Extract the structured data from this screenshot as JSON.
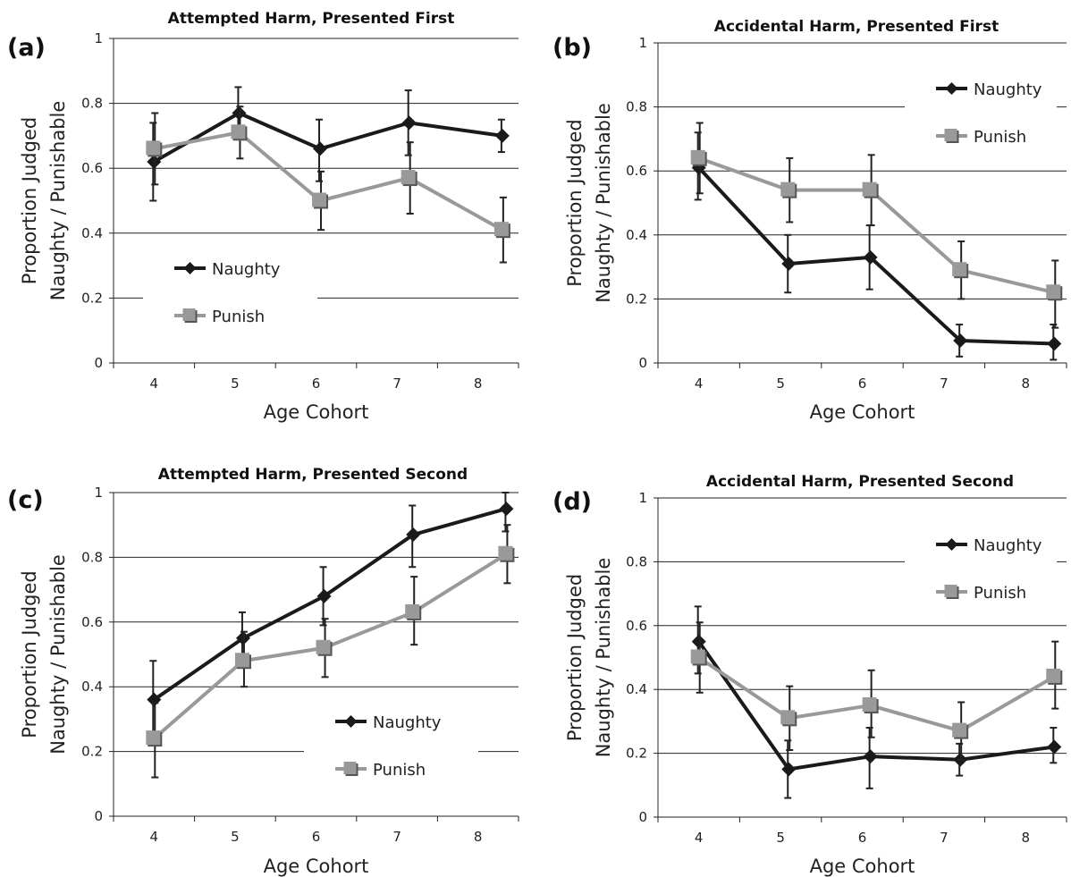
{
  "chart_data": [
    {
      "panel": "(a)",
      "type": "line",
      "title": "Attempted Harm, Presented First",
      "xlabel": "Age Cohort",
      "ylabel": [
        "Proportion Judged",
        "Naughty / Punishable"
      ],
      "categories": [
        "4",
        "5",
        "6",
        "7",
        "8"
      ],
      "ylim": [
        0,
        1
      ],
      "yticks": [
        "0",
        "0.2",
        "0.4",
        "0.6",
        "0.8",
        "1"
      ],
      "grid": "horizontal",
      "legend_position": "bottom-left",
      "series": [
        {
          "name": "Naughty",
          "color": "#1a1a1a",
          "marker": "diamond",
          "x": [
            4.0,
            5.05,
            6.05,
            7.15,
            8.3
          ],
          "values": [
            0.62,
            0.77,
            0.66,
            0.74,
            0.7
          ],
          "err_low": [
            0.5,
            0.7,
            0.56,
            0.64,
            0.65
          ],
          "err_high": [
            0.74,
            0.85,
            0.75,
            0.84,
            0.75
          ]
        },
        {
          "name": "Punish",
          "color": "#999999",
          "marker": "square",
          "x": [
            4.0,
            5.05,
            6.05,
            7.15,
            8.3
          ],
          "values": [
            0.66,
            0.71,
            0.5,
            0.57,
            0.41
          ],
          "err_low": [
            0.55,
            0.63,
            0.41,
            0.46,
            0.31
          ],
          "err_high": [
            0.77,
            0.79,
            0.59,
            0.68,
            0.51
          ]
        }
      ]
    },
    {
      "panel": "(b)",
      "type": "line",
      "title": "Accidental Harm, Presented First",
      "xlabel": "Age Cohort",
      "ylabel": [
        "Proportion Judged",
        "Naughty / Punishable"
      ],
      "categories": [
        "4",
        "5",
        "6",
        "7",
        "8"
      ],
      "ylim": [
        0,
        1
      ],
      "yticks": [
        "0",
        "0.2",
        "0.4",
        "0.6",
        "0.8",
        "1"
      ],
      "grid": "horizontal",
      "legend_position": "top-right",
      "series": [
        {
          "name": "Naughty",
          "color": "#1a1a1a",
          "marker": "diamond",
          "x": [
            4.0,
            5.1,
            6.1,
            7.2,
            8.35
          ],
          "values": [
            0.61,
            0.31,
            0.33,
            0.07,
            0.06
          ],
          "err_low": [
            0.51,
            0.22,
            0.23,
            0.02,
            0.01
          ],
          "err_high": [
            0.72,
            0.4,
            0.43,
            0.12,
            0.12
          ]
        },
        {
          "name": "Punish",
          "color": "#999999",
          "marker": "square",
          "x": [
            4.0,
            5.1,
            6.1,
            7.2,
            8.35
          ],
          "values": [
            0.64,
            0.54,
            0.54,
            0.29,
            0.22
          ],
          "err_low": [
            0.53,
            0.44,
            0.43,
            0.2,
            0.11
          ],
          "err_high": [
            0.75,
            0.64,
            0.65,
            0.38,
            0.32
          ]
        }
      ]
    },
    {
      "panel": "(c)",
      "type": "line",
      "title": "Attempted Harm, Presented Second",
      "xlabel": "Age Cohort",
      "ylabel": [
        "Proportion Judged",
        "Naughty / Punishable"
      ],
      "categories": [
        "4",
        "5",
        "6",
        "7",
        "8"
      ],
      "ylim": [
        0,
        1
      ],
      "yticks": [
        "0",
        "0.2",
        "0.4",
        "0.6",
        "0.8",
        "1"
      ],
      "grid": "horizontal",
      "legend_position": "bottom-right",
      "series": [
        {
          "name": "Naughty",
          "color": "#1a1a1a",
          "marker": "diamond",
          "x": [
            4.0,
            5.1,
            6.1,
            7.2,
            8.35
          ],
          "values": [
            0.36,
            0.55,
            0.68,
            0.87,
            0.95
          ],
          "err_low": [
            0.24,
            0.47,
            0.59,
            0.77,
            0.88
          ],
          "err_high": [
            0.48,
            0.63,
            0.77,
            0.96,
            1.0
          ]
        },
        {
          "name": "Punish",
          "color": "#999999",
          "marker": "square",
          "x": [
            4.0,
            5.1,
            6.1,
            7.2,
            8.35
          ],
          "values": [
            0.24,
            0.48,
            0.52,
            0.63,
            0.81
          ],
          "err_low": [
            0.12,
            0.4,
            0.43,
            0.53,
            0.72
          ],
          "err_high": [
            0.35,
            0.57,
            0.61,
            0.74,
            0.9
          ]
        }
      ]
    },
    {
      "panel": "(d)",
      "type": "line",
      "title": "Accidental Harm, Presented Second",
      "xlabel": "Age Cohort",
      "ylabel": [
        "Proportion Judged",
        "Naughty / Punishable"
      ],
      "categories": [
        "4",
        "5",
        "6",
        "7",
        "8"
      ],
      "ylim": [
        0,
        1
      ],
      "yticks": [
        "0",
        "0.2",
        "0.4",
        "0.6",
        "0.8",
        "1"
      ],
      "grid": "horizontal",
      "legend_position": "top-right",
      "series": [
        {
          "name": "Naughty",
          "color": "#1a1a1a",
          "marker": "diamond",
          "x": [
            4.0,
            5.1,
            6.1,
            7.2,
            8.35
          ],
          "values": [
            0.55,
            0.15,
            0.19,
            0.18,
            0.22
          ],
          "err_low": [
            0.45,
            0.06,
            0.09,
            0.13,
            0.17
          ],
          "err_high": [
            0.66,
            0.24,
            0.28,
            0.23,
            0.28
          ]
        },
        {
          "name": "Punish",
          "color": "#999999",
          "marker": "square",
          "x": [
            4.0,
            5.1,
            6.1,
            7.2,
            8.35
          ],
          "values": [
            0.5,
            0.31,
            0.35,
            0.27,
            0.44
          ],
          "err_low": [
            0.39,
            0.21,
            0.25,
            0.18,
            0.34
          ],
          "err_high": [
            0.61,
            0.41,
            0.46,
            0.36,
            0.55
          ]
        }
      ]
    }
  ]
}
